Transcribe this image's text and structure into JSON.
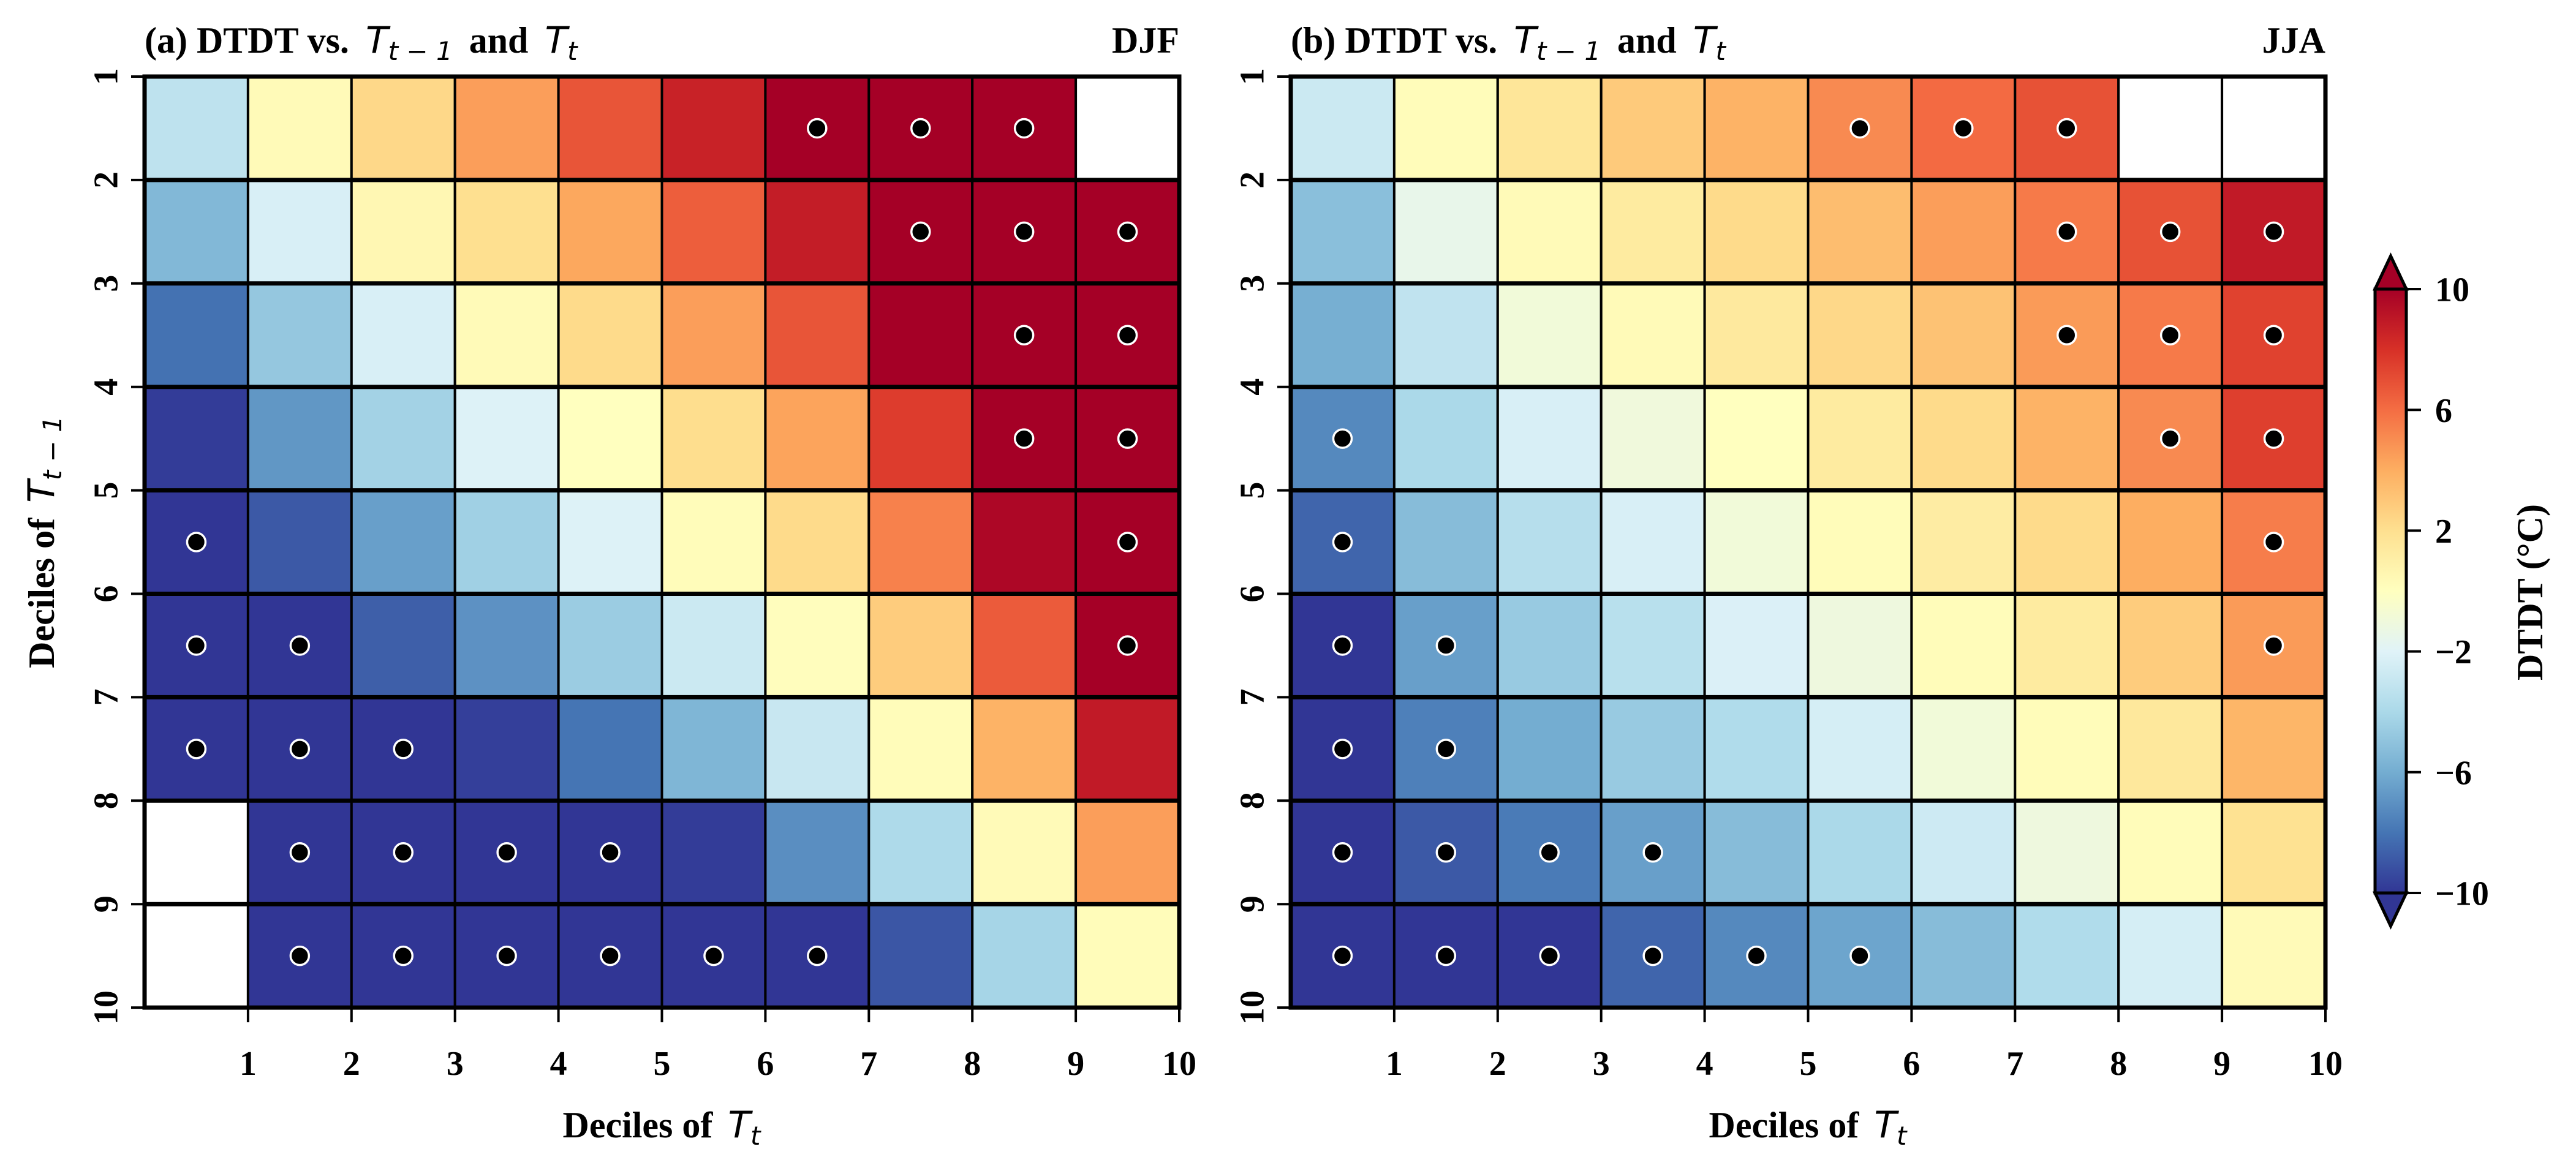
{
  "chart_data": [
    {
      "type": "heatmap",
      "panel_label": "(a) DTDT vs.",
      "title_prefix": "(a) DTDT vs.",
      "title_var1": "T",
      "title_var1_sub": "t − 1",
      "title_and": "and",
      "title_var2": "T",
      "title_var2_sub": "t",
      "season": "DJF",
      "xlabel_prefix": "Deciles of",
      "xlabel_var": "T",
      "xlabel_sub": "t",
      "ylabel_prefix": "Deciles of",
      "ylabel_var": "T",
      "ylabel_sub": "t − 1",
      "x_ticks": [
        "1",
        "2",
        "3",
        "4",
        "5",
        "6",
        "7",
        "8",
        "9",
        "10"
      ],
      "y_ticks": [
        "1",
        "2",
        "3",
        "4",
        "5",
        "6",
        "7",
        "8",
        "9",
        "10"
      ],
      "xlim": [
        0,
        10
      ],
      "ylim": [
        1,
        10
      ],
      "values": [
        [
          -3.3,
          0.3,
          2.3,
          4.5,
          6.8,
          8.6,
          10.5,
          11.0,
          11.5,
          null
        ],
        [
          -5.5,
          -2.3,
          0.5,
          2.0,
          4.2,
          6.5,
          8.8,
          10.5,
          11.0,
          11.5
        ],
        [
          -8.1,
          -4.8,
          -2.3,
          0.3,
          2.2,
          4.5,
          6.8,
          10.5,
          11.0,
          11.5
        ],
        [
          -9.8,
          -6.8,
          -4.3,
          -2.1,
          0.0,
          2.1,
          4.3,
          7.6,
          10.5,
          11.0
        ],
        [
          -10.5,
          -8.9,
          -6.5,
          -4.4,
          -2.1,
          0.2,
          2.2,
          5.4,
          9.7,
          10.5
        ],
        [
          -10.5,
          -11.0,
          -8.7,
          -7.0,
          -4.6,
          -2.8,
          0.1,
          2.8,
          6.6,
          10.5
        ],
        [
          -11.0,
          -11.0,
          -11.0,
          -9.7,
          -8.0,
          -5.6,
          -2.9,
          0.2,
          3.8,
          8.9
        ],
        [
          null,
          -11.0,
          -11.0,
          -11.0,
          -11.0,
          -9.8,
          -7.1,
          -3.9,
          0.3,
          4.5
        ],
        [
          null,
          -11.0,
          -11.0,
          -11.0,
          -11.0,
          -11.0,
          -11.0,
          -9.0,
          -4.2,
          0.2
        ]
      ],
      "significant": [
        [
          0,
          0,
          0,
          0,
          0,
          0,
          1,
          1,
          1,
          0
        ],
        [
          0,
          0,
          0,
          0,
          0,
          0,
          0,
          1,
          1,
          1
        ],
        [
          0,
          0,
          0,
          0,
          0,
          0,
          0,
          0,
          1,
          1
        ],
        [
          0,
          0,
          0,
          0,
          0,
          0,
          0,
          0,
          1,
          1
        ],
        [
          1,
          0,
          0,
          0,
          0,
          0,
          0,
          0,
          0,
          1
        ],
        [
          1,
          1,
          0,
          0,
          0,
          0,
          0,
          0,
          0,
          1
        ],
        [
          1,
          1,
          1,
          0,
          0,
          0,
          0,
          0,
          0,
          0
        ],
        [
          0,
          1,
          1,
          1,
          1,
          0,
          0,
          0,
          0,
          0
        ],
        [
          0,
          1,
          1,
          1,
          1,
          1,
          1,
          0,
          0,
          0
        ]
      ]
    },
    {
      "type": "heatmap",
      "title_prefix": "(b) DTDT vs.",
      "title_var1": "T",
      "title_var1_sub": "t − 1",
      "title_and": "and",
      "title_var2": "T",
      "title_var2_sub": "t",
      "season": "JJA",
      "xlabel_prefix": "Deciles of",
      "xlabel_var": "T",
      "xlabel_sub": "t",
      "x_ticks": [
        "1",
        "2",
        "3",
        "4",
        "5",
        "6",
        "7",
        "8",
        "9",
        "10"
      ],
      "y_ticks": [
        "1",
        "2",
        "3",
        "4",
        "5",
        "6",
        "7",
        "8",
        "9",
        "10"
      ],
      "xlim": [
        0,
        10
      ],
      "ylim": [
        1,
        10
      ],
      "values": [
        [
          -2.8,
          0.2,
          1.6,
          2.9,
          3.8,
          5.1,
          6.1,
          6.9,
          null,
          null
        ],
        [
          -5.2,
          -1.5,
          0.3,
          1.3,
          2.2,
          3.4,
          4.5,
          5.6,
          6.9,
          8.9
        ],
        [
          -5.9,
          -3.2,
          -0.9,
          0.3,
          1.4,
          2.3,
          3.2,
          4.6,
          5.6,
          7.4
        ],
        [
          -7.3,
          -4.0,
          -2.3,
          -1.0,
          0.0,
          1.3,
          2.2,
          3.8,
          5.1,
          7.5
        ],
        [
          -8.5,
          -5.3,
          -3.6,
          -2.3,
          -0.9,
          0.2,
          1.2,
          2.2,
          4.0,
          5.5
        ],
        [
          -10.5,
          -6.5,
          -4.7,
          -3.5,
          -2.2,
          -1.1,
          0.2,
          1.3,
          2.8,
          4.6
        ],
        [
          -10.5,
          -7.6,
          -6.0,
          -4.7,
          -3.8,
          -2.4,
          -0.9,
          0.2,
          1.5,
          3.7
        ],
        [
          -10.5,
          -8.9,
          -7.8,
          -6.5,
          -5.3,
          -4.0,
          -2.7,
          -1.1,
          0.2,
          1.9
        ],
        [
          -10.5,
          -11.0,
          -11.0,
          -8.5,
          -7.3,
          -6.3,
          -5.3,
          -3.8,
          -2.4,
          0.3
        ]
      ],
      "significant": [
        [
          0,
          0,
          0,
          0,
          0,
          1,
          1,
          1,
          0,
          0
        ],
        [
          0,
          0,
          0,
          0,
          0,
          0,
          0,
          1,
          1,
          1
        ],
        [
          0,
          0,
          0,
          0,
          0,
          0,
          0,
          1,
          1,
          1
        ],
        [
          1,
          0,
          0,
          0,
          0,
          0,
          0,
          0,
          1,
          1
        ],
        [
          1,
          0,
          0,
          0,
          0,
          0,
          0,
          0,
          0,
          1
        ],
        [
          1,
          1,
          0,
          0,
          0,
          0,
          0,
          0,
          0,
          1
        ],
        [
          1,
          1,
          0,
          0,
          0,
          0,
          0,
          0,
          0,
          0
        ],
        [
          1,
          1,
          1,
          1,
          0,
          0,
          0,
          0,
          0,
          0
        ],
        [
          1,
          1,
          1,
          1,
          1,
          1,
          0,
          0,
          0,
          0
        ]
      ]
    }
  ],
  "colorbar": {
    "label": "DTDT (°C)",
    "ticks": [
      "10",
      "6",
      "2",
      "−2",
      "−6",
      "−10"
    ],
    "tick_values": [
      10,
      6,
      2,
      -2,
      -6,
      -10
    ],
    "vmin": -10,
    "vmax": 10,
    "extend": "both",
    "colormap": [
      "#313695",
      "#4575b4",
      "#74add1",
      "#abd9e9",
      "#e0f3f8",
      "#ffffbf",
      "#fee090",
      "#fdae61",
      "#f46d43",
      "#d73027",
      "#a50026"
    ]
  }
}
